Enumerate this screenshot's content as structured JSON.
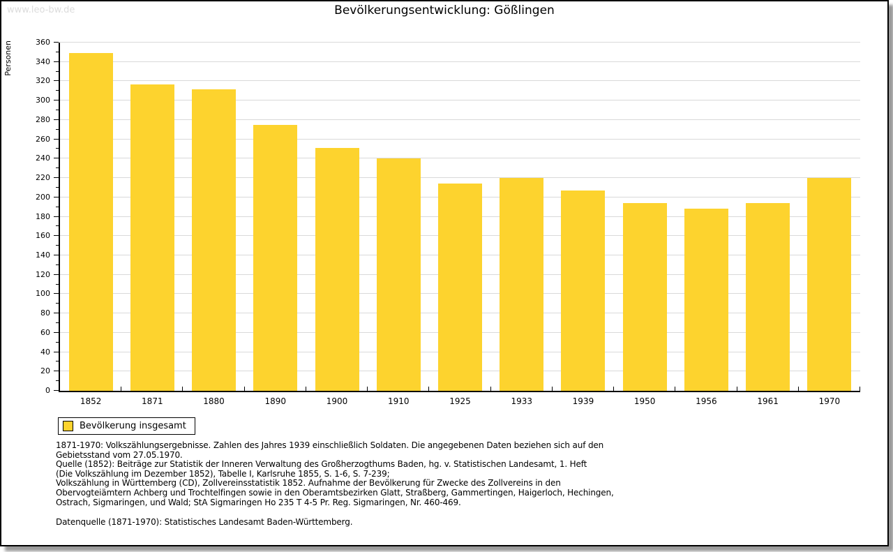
{
  "page": {
    "watermark": "www.leo-bw.de"
  },
  "chart_data": {
    "type": "bar",
    "title": "Bevölkerungsentwicklung: Gößlingen",
    "ylabel": "Personen",
    "xlabel": "",
    "ylim": [
      0,
      360
    ],
    "y_tick_step": 20,
    "y_minor_tick_step": 10,
    "grid": true,
    "legend_position": "bottom-left",
    "categories": [
      "1852",
      "1871",
      "1880",
      "1890",
      "1900",
      "1910",
      "1925",
      "1933",
      "1939",
      "1950",
      "1956",
      "1961",
      "1970"
    ],
    "series": [
      {
        "name": "Bevölkerung insgesamt",
        "values": [
          349,
          317,
          312,
          275,
          251,
          240,
          214,
          220,
          207,
          194,
          188,
          194,
          220
        ]
      }
    ]
  },
  "legend": {
    "label": "Bevölkerung insgesamt"
  },
  "footer": {
    "lines": [
      "1871-1970: Volkszählungsergebnisse. Zahlen des Jahres 1939 einschließlich Soldaten. Die angegebenen Daten beziehen sich auf den",
      "Gebietsstand vom 27.05.1970.",
      "Quelle (1852): Beiträge zur Statistik der Inneren Verwaltung des Großherzogthums Baden, hg. v. Statistischen Landesamt, 1. Heft",
      "(Die Volkszählung im Dezember 1852), Tabelle I, Karlsruhe 1855, S. 1-6, S. 7-239;",
      "Volkszählung in Württemberg (CD), Zollvereinsstatistik 1852. Aufnahme der Bevölkerung für Zwecke des Zollvereins in den",
      "Obervogteiämtern Achberg und Trochtelfingen sowie in den Oberamtsbezirken Glatt, Straßberg, Gammertingen, Haigerloch, Hechingen,",
      "Ostrach, Sigmaringen, und Wald; StA Sigmaringen Ho 235 T 4-5 Pr. Reg. Sigmaringen, Nr. 460-469."
    ],
    "datasource": "Datenquelle (1871-1970): Statistisches Landesamt Baden-Württemberg."
  },
  "colors": {
    "bar": "#FDD32E",
    "gridline": "#d9d9d9",
    "axis": "#000000",
    "watermark": "#dcdcdc",
    "page_border": "#000000",
    "shadow": "#9a9a9a"
  }
}
